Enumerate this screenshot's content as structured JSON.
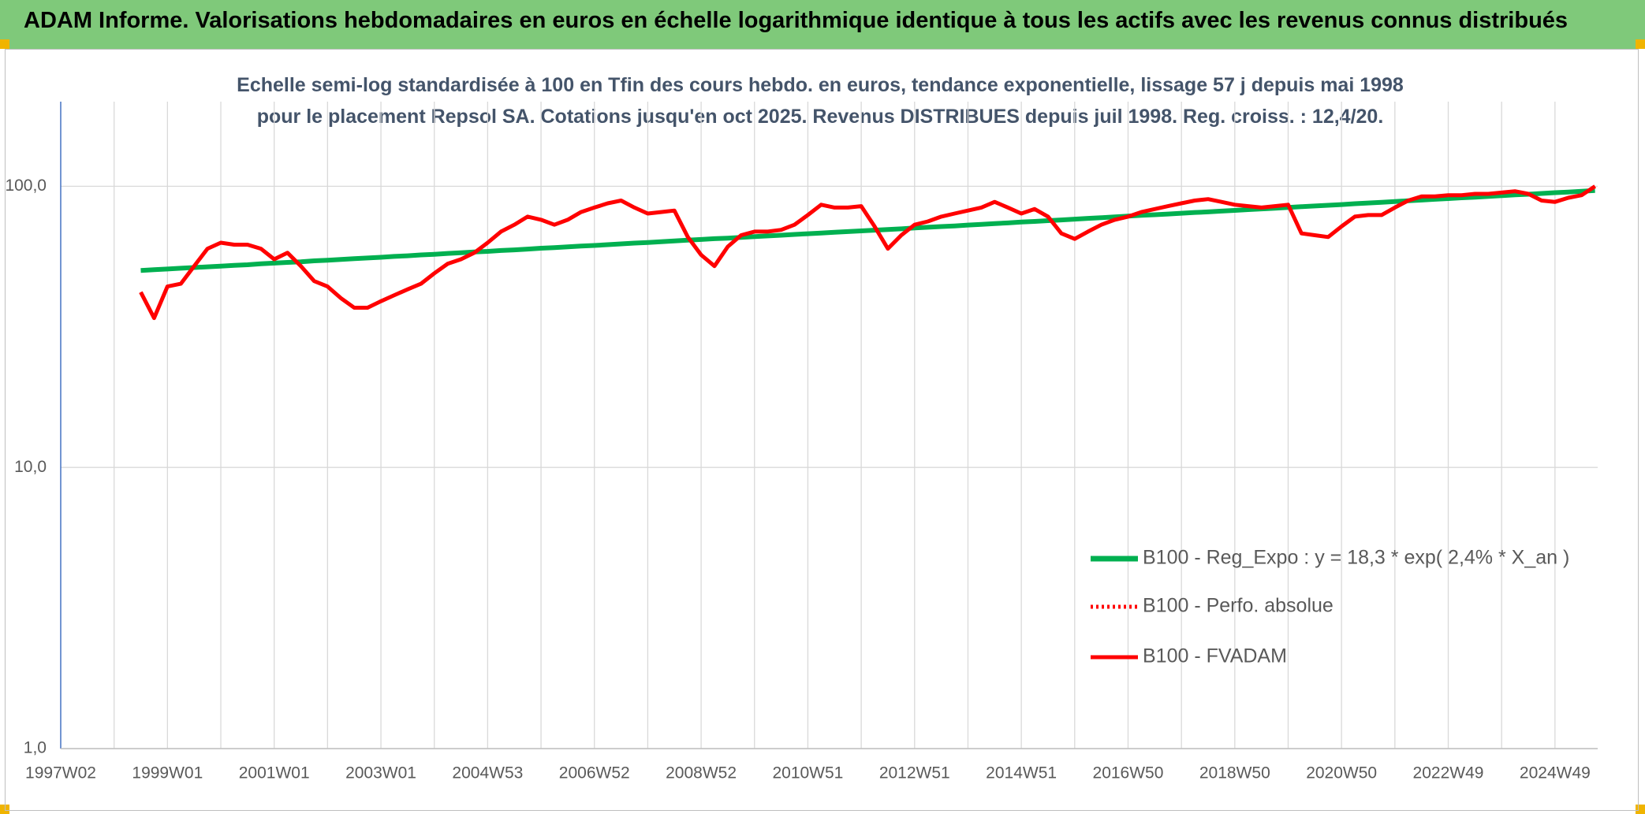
{
  "chart_data": {
    "type": "line",
    "title": "ADAM Informe. Valorisations hebdomadaires en euros en échelle logarithmique identique à tous les actifs avec les revenus connus distribués",
    "subtitle": "Echelle semi-log standardisée à 100 en Tfin des cours hebdo. en euros, tendance exponentielle, lissage 57 j depuis mai 1998 pour le placement Repsol SA. Cotations jusqu'en oct 2025. Revenus DISTRIBUES depuis juil 1998. Reg. croiss. : 12,4/20.",
    "categories": [
      "1997W02",
      null,
      null,
      null,
      null,
      null,
      null,
      null,
      "1999W01",
      null,
      null,
      null,
      null,
      null,
      null,
      null,
      "2001W01",
      null,
      null,
      null,
      null,
      null,
      null,
      null,
      "2003W01",
      null,
      null,
      null,
      null,
      null,
      null,
      null,
      "2004W53",
      null,
      null,
      null,
      null,
      null,
      null,
      null,
      "2006W52",
      null,
      null,
      null,
      null,
      null,
      null,
      null,
      "2008W52",
      null,
      null,
      null,
      null,
      null,
      null,
      null,
      "2010W51",
      null,
      null,
      null,
      null,
      null,
      null,
      null,
      "2012W51",
      null,
      null,
      null,
      null,
      null,
      null,
      null,
      "2014W51",
      null,
      null,
      null,
      null,
      null,
      null,
      null,
      "2016W50",
      null,
      null,
      null,
      null,
      null,
      null,
      null,
      "2018W50",
      null,
      null,
      null,
      null,
      null,
      null,
      null,
      "2020W50",
      null,
      null,
      null,
      null,
      null,
      null,
      null,
      "2022W49",
      null,
      null,
      null,
      null,
      null,
      null,
      null,
      "2024W49",
      null,
      null,
      null
    ],
    "series": [
      {
        "name": "B100 - Reg_Expo : y = 18,3 * exp( 2,4% *  X_an )",
        "color": "#00b050",
        "dash": "solid",
        "values": [
          null,
          null,
          null,
          null,
          null,
          null,
          50.2,
          50.5,
          50.8,
          51.1,
          51.4,
          51.7,
          52.0,
          52.3,
          52.6,
          53.0,
          53.3,
          53.6,
          53.9,
          54.3,
          54.6,
          54.9,
          55.3,
          55.6,
          55.9,
          56.3,
          56.6,
          57.0,
          57.3,
          57.7,
          58.0,
          58.4,
          58.7,
          59.1,
          59.4,
          59.8,
          60.2,
          60.5,
          60.9,
          61.3,
          61.6,
          62.0,
          62.4,
          62.8,
          63.1,
          63.5,
          63.9,
          64.3,
          64.7,
          65.1,
          65.4,
          65.8,
          66.2,
          66.6,
          67.0,
          67.4,
          67.8,
          68.2,
          68.6,
          69.0,
          69.4,
          69.8,
          70.2,
          70.6,
          71.1,
          71.5,
          71.9,
          72.3,
          72.8,
          73.2,
          73.7,
          74.1,
          74.6,
          75.0,
          75.5,
          75.9,
          76.4,
          76.9,
          77.3,
          77.8,
          78.3,
          78.8,
          79.2,
          79.7,
          80.2,
          80.7,
          81.1,
          81.6,
          82.1,
          82.6,
          83.1,
          83.6,
          84.1,
          84.6,
          85.1,
          85.6,
          86.1,
          86.7,
          87.2,
          87.7,
          88.3,
          88.8,
          89.3,
          89.9,
          90.4,
          91.0,
          91.5,
          92.1,
          92.6,
          93.2,
          93.7,
          94.3,
          94.9,
          95.4,
          96.0,
          96.6
        ]
      },
      {
        "name": "B100 - Perfo. absolue",
        "color": "#ff0000",
        "dash": "dotted",
        "values": [
          null,
          null,
          null,
          null,
          null,
          null,
          42,
          34,
          44,
          45,
          52,
          60,
          63,
          62,
          62,
          60,
          55,
          58,
          52,
          46,
          44,
          40,
          37,
          37,
          39,
          41,
          43,
          45,
          49,
          53,
          55,
          58,
          63,
          69,
          73,
          78,
          76,
          73,
          76,
          81,
          84,
          87,
          89,
          84,
          80,
          81,
          82,
          66,
          57,
          52,
          61,
          67,
          69,
          69,
          70,
          73,
          79,
          86,
          84,
          84,
          85,
          72,
          60,
          67,
          73,
          75,
          78,
          80,
          82,
          84,
          88,
          84,
          80,
          83,
          78,
          68,
          65,
          69,
          73,
          76,
          78,
          81,
          83,
          85,
          87,
          89,
          90,
          88,
          86,
          85,
          84,
          85,
          86,
          68,
          67,
          66,
          72,
          78,
          79,
          79,
          84,
          89,
          92,
          92,
          93,
          93,
          94,
          94,
          95,
          96,
          94,
          89,
          88,
          91,
          93,
          100
        ]
      },
      {
        "name": "B100 - FVADAM",
        "color": "#ff0000",
        "dash": "solid",
        "values": [
          null,
          null,
          null,
          null,
          null,
          null,
          42,
          34,
          44,
          45,
          52,
          60,
          63,
          62,
          62,
          60,
          55,
          58,
          52,
          46,
          44,
          40,
          37,
          37,
          39,
          41,
          43,
          45,
          49,
          53,
          55,
          58,
          63,
          69,
          73,
          78,
          76,
          73,
          76,
          81,
          84,
          87,
          89,
          84,
          80,
          81,
          82,
          66,
          57,
          52,
          61,
          67,
          69,
          69,
          70,
          73,
          79,
          86,
          84,
          84,
          85,
          72,
          60,
          67,
          73,
          75,
          78,
          80,
          82,
          84,
          88,
          84,
          80,
          83,
          78,
          68,
          65,
          69,
          73,
          76,
          78,
          81,
          83,
          85,
          87,
          89,
          90,
          88,
          86,
          85,
          84,
          85,
          86,
          68,
          67,
          66,
          72,
          78,
          79,
          79,
          84,
          89,
          92,
          92,
          93,
          93,
          94,
          94,
          95,
          96,
          94,
          89,
          88,
          91,
          93,
          100
        ]
      }
    ],
    "ylim": [
      1,
      200
    ],
    "yticks": [
      {
        "value": 1,
        "label": "1,0"
      },
      {
        "value": 10,
        "label": "10,0"
      },
      {
        "value": 100,
        "label": "100,0"
      }
    ],
    "log_scale": true,
    "grid": true,
    "legend": "lower right"
  }
}
